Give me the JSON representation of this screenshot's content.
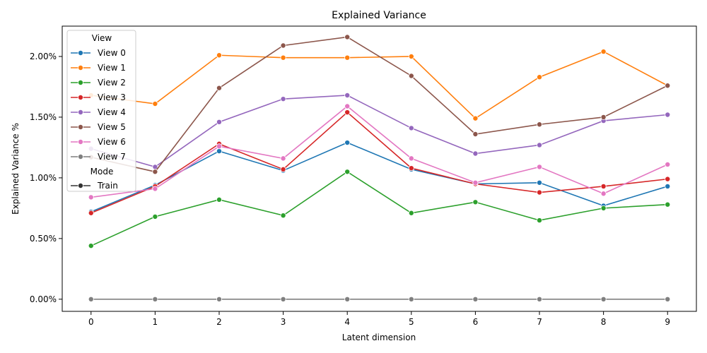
{
  "chart_data": {
    "type": "line",
    "title": "Explained Variance",
    "xlabel": "Latent dimension",
    "ylabel": "Explained Variance %",
    "x": [
      0,
      1,
      2,
      3,
      4,
      5,
      6,
      7,
      8,
      9
    ],
    "ylim": [
      -0.001,
      0.0225
    ],
    "yticks": [
      0,
      0.005,
      0.01,
      0.015,
      0.02
    ],
    "ytick_labels": [
      "0.00%",
      "0.50%",
      "1.00%",
      "1.50%",
      "2.00%"
    ],
    "xtick_labels": [
      "0",
      "1",
      "2",
      "3",
      "4",
      "5",
      "6",
      "7",
      "8",
      "9"
    ],
    "grid": false,
    "legend_position": "upper-left",
    "legend": {
      "hue_title": "View",
      "style_title": "Mode",
      "style_entries": [
        "Train"
      ]
    },
    "series": [
      {
        "name": "View 0",
        "color": "#1f77b4",
        "values": [
          0.0072,
          0.0094,
          0.0122,
          0.0106,
          0.0129,
          0.0107,
          0.0095,
          0.0096,
          0.0077,
          0.0093
        ]
      },
      {
        "name": "View 1",
        "color": "#ff7f0e",
        "values": [
          0.0168,
          0.0161,
          0.0201,
          0.0199,
          0.0199,
          0.02,
          0.0149,
          0.0183,
          0.0204,
          0.0176
        ]
      },
      {
        "name": "View 2",
        "color": "#2ca02c",
        "values": [
          0.0044,
          0.0068,
          0.0082,
          0.0069,
          0.0105,
          0.0071,
          0.008,
          0.0065,
          0.0075,
          0.0078
        ]
      },
      {
        "name": "View 3",
        "color": "#d62728",
        "values": [
          0.0071,
          0.0093,
          0.0128,
          0.0107,
          0.0154,
          0.0108,
          0.0095,
          0.0088,
          0.0093,
          0.0099
        ]
      },
      {
        "name": "View 4",
        "color": "#9467bd",
        "values": [
          0.0124,
          0.0109,
          0.0146,
          0.0165,
          0.0168,
          0.0141,
          0.012,
          0.0127,
          0.0147,
          0.0152
        ]
      },
      {
        "name": "View 5",
        "color": "#8c564b",
        "values": [
          0.0117,
          0.0105,
          0.0174,
          0.0209,
          0.0216,
          0.0184,
          0.0136,
          0.0144,
          0.015,
          0.0176
        ]
      },
      {
        "name": "View 6",
        "color": "#e377c2",
        "values": [
          0.0084,
          0.0091,
          0.0126,
          0.0116,
          0.0159,
          0.0116,
          0.0096,
          0.0109,
          0.0087,
          0.0111
        ]
      },
      {
        "name": "View 7",
        "color": "#7f7f7f",
        "values": [
          0.0,
          0.0,
          0.0,
          0.0,
          0.0,
          0.0,
          0.0,
          0.0,
          0.0,
          0.0
        ]
      }
    ]
  }
}
